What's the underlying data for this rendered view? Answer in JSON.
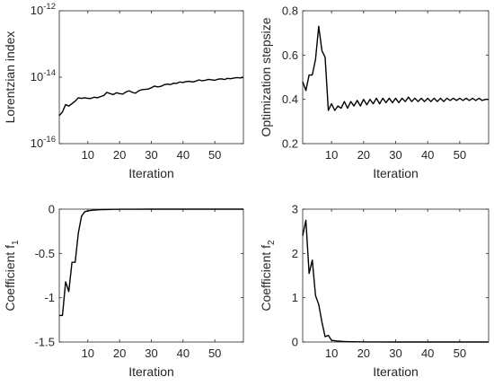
{
  "chart_data": [
    {
      "type": "line",
      "xlabel": "Iteration",
      "ylabel": "Lorentzian index",
      "yscale": "log",
      "xlim": [
        1,
        59
      ],
      "ylim": [
        1e-16,
        1e-12
      ],
      "xticks": [
        10,
        20,
        30,
        40,
        50
      ],
      "xtick_labels": [
        "10",
        "20",
        "30",
        "40",
        "50"
      ],
      "yticks": [
        1e-16,
        1e-14,
        1e-12
      ],
      "ytick_labels": [
        {
          "base": "10",
          "exp": "-16"
        },
        {
          "base": "10",
          "exp": "-14"
        },
        {
          "base": "10",
          "exp": "-12"
        }
      ],
      "grid": false,
      "line_color": "#000000",
      "series": [
        {
          "x": [
            1,
            2,
            3,
            4,
            5,
            6,
            7,
            8,
            9,
            10,
            11,
            12,
            13,
            14,
            15,
            16,
            17,
            18,
            19,
            20,
            21,
            22,
            23,
            24,
            25,
            26,
            27,
            28,
            29,
            30,
            31,
            32,
            33,
            34,
            35,
            36,
            37,
            38,
            39,
            40,
            41,
            42,
            43,
            44,
            45,
            46,
            47,
            48,
            49,
            50,
            51,
            52,
            53,
            54,
            55,
            56,
            57,
            58,
            59
          ],
          "y": [
            7e-16,
            9e-16,
            1.5e-15,
            1.35e-15,
            1.6e-15,
            1.9e-15,
            2.4e-15,
            2.3e-15,
            2.4e-15,
            2.3e-15,
            2.3e-15,
            2.5e-15,
            2.4e-15,
            2.6e-15,
            2.8e-15,
            3.5e-15,
            3.2e-15,
            3e-15,
            3.4e-15,
            3.2e-15,
            3.1e-15,
            3.6e-15,
            3.9e-15,
            3.5e-15,
            3.3e-15,
            3.9e-15,
            4.2e-15,
            4.3e-15,
            4.4e-15,
            4.8e-15,
            5.4e-15,
            5.1e-15,
            5.3e-15,
            5.9e-15,
            6.2e-15,
            6e-15,
            6.6e-15,
            6.5e-15,
            7.2e-15,
            6.9e-15,
            7.4e-15,
            7.5e-15,
            7.2e-15,
            7.6e-15,
            8.3e-15,
            7.8e-15,
            8.1e-15,
            8.6e-15,
            8.3e-15,
            8.1e-15,
            8.7e-15,
            8.9e-15,
            8.5e-15,
            9.2e-15,
            9e-15,
            9.4e-15,
            9.7e-15,
            9.5e-15,
            9.9e-15
          ]
        }
      ]
    },
    {
      "type": "line",
      "xlabel": "Iteration",
      "ylabel": "Optimization stepsize",
      "yscale": "linear",
      "xlim": [
        1,
        59
      ],
      "ylim": [
        0.2,
        0.8
      ],
      "xticks": [
        10,
        20,
        30,
        40,
        50
      ],
      "xtick_labels": [
        "10",
        "20",
        "30",
        "40",
        "50"
      ],
      "yticks": [
        0.2,
        0.4,
        0.6,
        0.8
      ],
      "ytick_labels": [
        "0.2",
        "0.4",
        "0.6",
        "0.8"
      ],
      "grid": false,
      "line_color": "#000000",
      "series": [
        {
          "x": [
            1,
            2,
            3,
            4,
            5,
            6,
            7,
            8,
            9,
            10,
            11,
            12,
            13,
            14,
            15,
            16,
            17,
            18,
            19,
            20,
            21,
            22,
            23,
            24,
            25,
            26,
            27,
            28,
            29,
            30,
            31,
            32,
            33,
            34,
            35,
            36,
            37,
            38,
            39,
            40,
            41,
            42,
            43,
            44,
            45,
            46,
            47,
            48,
            49,
            50,
            51,
            52,
            53,
            54,
            55,
            56,
            57,
            58,
            59
          ],
          "y": [
            0.48,
            0.44,
            0.51,
            0.51,
            0.58,
            0.73,
            0.62,
            0.59,
            0.35,
            0.38,
            0.35,
            0.37,
            0.36,
            0.39,
            0.36,
            0.39,
            0.37,
            0.395,
            0.37,
            0.4,
            0.375,
            0.4,
            0.38,
            0.405,
            0.38,
            0.405,
            0.385,
            0.405,
            0.385,
            0.405,
            0.385,
            0.405,
            0.39,
            0.41,
            0.39,
            0.405,
            0.39,
            0.405,
            0.39,
            0.405,
            0.39,
            0.405,
            0.39,
            0.405,
            0.39,
            0.405,
            0.395,
            0.405,
            0.395,
            0.405,
            0.395,
            0.405,
            0.395,
            0.405,
            0.395,
            0.405,
            0.395,
            0.4,
            0.4
          ]
        }
      ]
    },
    {
      "type": "line",
      "xlabel": "Iteration",
      "ylabel": "Coefficient f",
      "ylabel_subscript": "1",
      "yscale": "linear",
      "xlim": [
        1,
        59
      ],
      "ylim": [
        -1.5,
        0
      ],
      "xticks": [
        10,
        20,
        30,
        40,
        50
      ],
      "xtick_labels": [
        "10",
        "20",
        "30",
        "40",
        "50"
      ],
      "yticks": [
        -1.5,
        -1,
        -0.5,
        0
      ],
      "ytick_labels": [
        "-1.5",
        "-1",
        "-0.5",
        "0"
      ],
      "grid": false,
      "line_color": "#000000",
      "series": [
        {
          "x": [
            1,
            2,
            3,
            4,
            5,
            6,
            7,
            8,
            9,
            10,
            11,
            12,
            13,
            14,
            15,
            16,
            17,
            18,
            19,
            20,
            25,
            30,
            40,
            50,
            59
          ],
          "y": [
            -1.2,
            -1.2,
            -0.82,
            -0.93,
            -0.6,
            -0.6,
            -0.27,
            -0.08,
            -0.03,
            -0.02,
            -0.015,
            -0.01,
            -0.008,
            -0.006,
            -0.005,
            -0.004,
            -0.003,
            -0.002,
            -0.002,
            -0.001,
            -0.001,
            0,
            0,
            0,
            0
          ]
        }
      ]
    },
    {
      "type": "line",
      "xlabel": "Iteration",
      "ylabel": "Coefficient f",
      "ylabel_subscript": "2",
      "yscale": "linear",
      "xlim": [
        1,
        59
      ],
      "ylim": [
        0,
        3
      ],
      "xticks": [
        10,
        20,
        30,
        40,
        50
      ],
      "xtick_labels": [
        "10",
        "20",
        "30",
        "40",
        "50"
      ],
      "yticks": [
        0,
        1,
        2,
        3
      ],
      "ytick_labels": [
        "0",
        "1",
        "2",
        "3"
      ],
      "grid": false,
      "line_color": "#000000",
      "series": [
        {
          "x": [
            1,
            2,
            3,
            4,
            5,
            6,
            7,
            8,
            9,
            10,
            11,
            12,
            13,
            14,
            15,
            16,
            17,
            18,
            19,
            20,
            25,
            30,
            40,
            50,
            59
          ],
          "y": [
            2.4,
            2.75,
            1.55,
            1.85,
            1.05,
            0.85,
            0.45,
            0.12,
            0.15,
            0.04,
            0.03,
            0.02,
            0.015,
            0.01,
            0.008,
            0.006,
            0.005,
            0.004,
            0.003,
            0.002,
            0.001,
            0,
            0,
            0,
            0
          ]
        }
      ]
    }
  ]
}
